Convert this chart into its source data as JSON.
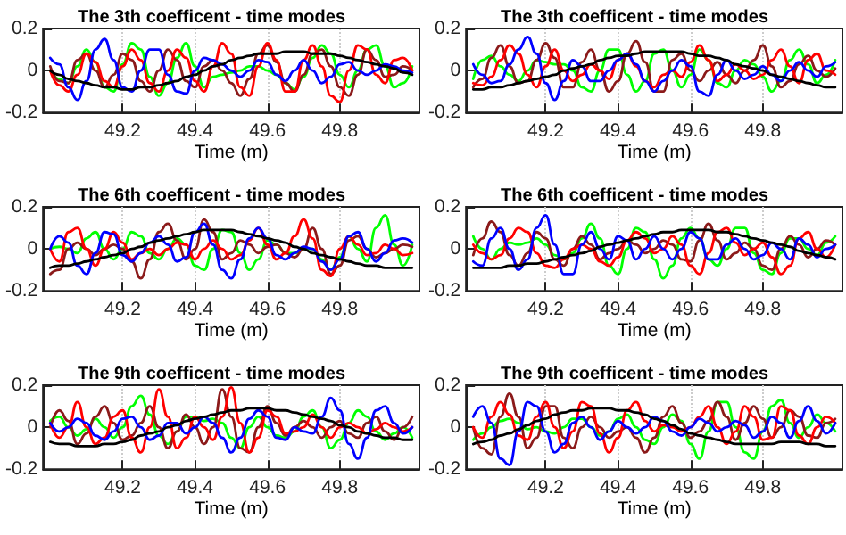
{
  "chart_data": [
    {
      "type": "line",
      "title": "The 3th coefficent - time modes",
      "xlabel": "Time (m)",
      "xlim": [
        48.98,
        50.02
      ],
      "ylim": [
        -0.2,
        0.2
      ],
      "xticks": [
        49.2,
        49.4,
        49.6,
        49.8
      ],
      "yticks": [
        -0.2,
        0,
        0.2
      ],
      "grid": "x",
      "marker": "none",
      "line_style": "solid",
      "x": [
        49,
        49.025,
        49.05,
        49.075,
        49.1,
        49.125,
        49.15,
        49.175,
        49.2,
        49.225,
        49.25,
        49.275,
        49.3,
        49.325,
        49.35,
        49.375,
        49.4,
        49.425,
        49.45,
        49.475,
        49.5,
        49.525,
        49.55,
        49.575,
        49.6,
        49.625,
        49.65,
        49.675,
        49.7,
        49.725,
        49.75,
        49.775,
        49.8,
        49.825,
        49.85,
        49.875,
        49.9,
        49.925,
        49.95,
        49.975,
        50
      ],
      "series": [
        {
          "color": "#00ff00",
          "values": [
            0,
            -0.04,
            -0.06,
            0.02,
            0.1,
            0.04,
            -0.08,
            -0.1,
            0.03,
            0.13,
            0.1,
            -0.03,
            -0.12,
            -0.06,
            0.06,
            0.13,
            0.02,
            -0.08,
            -0.03,
            -0.02,
            -0.01,
            0.0,
            0.02,
            0.02,
            0.0,
            -0.02,
            -0.06,
            -0.09,
            -0.03,
            0.06,
            0.12,
            0.08,
            -0.02,
            -0.08,
            0.0,
            0.1,
            0.12,
            0.02,
            -0.08,
            -0.06,
            0.02
          ]
        },
        {
          "color": "#8b1a1a",
          "values": [
            0.02,
            -0.05,
            -0.06,
            0.05,
            0.08,
            0.0,
            -0.08,
            -0.02,
            0.08,
            0.05,
            -0.05,
            -0.1,
            0.0,
            0.1,
            0.05,
            -0.05,
            -0.08,
            0.02,
            0.05,
            0.0,
            -0.06,
            -0.12,
            -0.04,
            0.08,
            0.12,
            0.04,
            -0.06,
            -0.1,
            -0.02,
            0.08,
            0.1,
            0.02,
            -0.08,
            -0.12,
            -0.02,
            0.1,
            0.05,
            -0.03,
            -0.02,
            0.02,
            0.0
          ]
        },
        {
          "color": "#ff0000",
          "values": [
            0,
            -0.07,
            -0.1,
            -0.02,
            0.08,
            0.04,
            -0.05,
            -0.08,
            0.02,
            0.1,
            0.05,
            -0.06,
            -0.1,
            0.0,
            0.1,
            0.06,
            -0.05,
            -0.1,
            0.02,
            0.13,
            0.08,
            -0.08,
            -0.12,
            0.02,
            0.13,
            0.05,
            -0.1,
            -0.1,
            0.05,
            0.12,
            0.02,
            -0.12,
            -0.15,
            0.0,
            0.12,
            0.1,
            -0.02,
            -0.06,
            0.05,
            0.06,
            0.0
          ]
        },
        {
          "color": "#0000ff",
          "values": [
            0.06,
            0.03,
            -0.08,
            -0.14,
            -0.05,
            0.1,
            0.15,
            0.05,
            -0.08,
            -0.1,
            0,
            0.1,
            0.1,
            -0.02,
            -0.1,
            -0.11,
            0,
            0.06,
            0.05,
            0.03,
            0.0,
            -0.03,
            0.0,
            0.05,
            0.04,
            -0.02,
            -0.05,
            0.0,
            0.05,
            0.0,
            -0.06,
            -0.03,
            0.03,
            0.04,
            0.0,
            -0.02,
            0.0,
            0.03,
            0.02,
            0.0,
            -0.01
          ]
        },
        {
          "color": "#000000",
          "values": [
            0,
            -0.02,
            -0.04,
            -0.05,
            -0.06,
            -0.07,
            -0.08,
            -0.08,
            -0.09,
            -0.09,
            -0.08,
            -0.08,
            -0.07,
            -0.06,
            -0.05,
            -0.03,
            -0.02,
            0,
            0.02,
            0.03,
            0.05,
            0.06,
            0.07,
            0.08,
            0.08,
            0.08,
            0.09,
            0.09,
            0.09,
            0.08,
            0.08,
            0.08,
            0.07,
            0.06,
            0.05,
            0.04,
            0.03,
            0.02,
            0.01,
            -0.01,
            -0.02
          ]
        }
      ]
    },
    {
      "type": "line",
      "title": "The 3th coefficent - time modes",
      "xlabel": "Time (m)",
      "xlim": [
        48.98,
        50.02
      ],
      "ylim": [
        -0.2,
        0.2
      ],
      "xticks": [
        49.2,
        49.4,
        49.6,
        49.8
      ],
      "yticks": [
        -0.2,
        0,
        0.2
      ],
      "grid": "x",
      "marker": "none",
      "line_style": "solid",
      "x": [
        49,
        49.025,
        49.05,
        49.075,
        49.1,
        49.125,
        49.15,
        49.175,
        49.2,
        49.225,
        49.25,
        49.275,
        49.3,
        49.325,
        49.35,
        49.375,
        49.4,
        49.425,
        49.45,
        49.475,
        49.5,
        49.525,
        49.55,
        49.575,
        49.6,
        49.625,
        49.65,
        49.675,
        49.7,
        49.725,
        49.75,
        49.775,
        49.8,
        49.825,
        49.85,
        49.875,
        49.9,
        49.925,
        49.95,
        49.975,
        50
      ],
      "series": [
        {
          "color": "#00ff00",
          "values": [
            -0.04,
            0.05,
            0.07,
            0.02,
            -0.02,
            -0.05,
            0.0,
            0.05,
            0.04,
            0.03,
            0.03,
            0.0,
            -0.08,
            -0.1,
            0.0,
            0.1,
            0.1,
            -0.02,
            -0.1,
            -0.05,
            0.08,
            0.1,
            0.0,
            -0.08,
            -0.02,
            0.1,
            0.05,
            -0.06,
            -0.08,
            0.0,
            0.05,
            0.03,
            -0.03,
            -0.1,
            -0.05,
            0.05,
            0.1,
            0.03,
            -0.06,
            -0.02,
            0.05
          ]
        },
        {
          "color": "#8b1a1a",
          "values": [
            -0.08,
            -0.04,
            0.06,
            0.12,
            0.02,
            -0.06,
            -0.05,
            0.05,
            0.13,
            0.06,
            -0.08,
            -0.08,
            0.04,
            0.1,
            0.0,
            -0.1,
            -0.05,
            0.08,
            0.14,
            0.04,
            -0.1,
            -0.1,
            0.05,
            0.08,
            0.0,
            -0.05,
            0.0,
            0.04,
            -0.02,
            -0.06,
            0.0,
            0.05,
            0.12,
            0.02,
            -0.08,
            -0.05,
            0.03,
            0.07,
            0.0,
            -0.03,
            0.01
          ]
        },
        {
          "color": "#ff0000",
          "values": [
            -0.06,
            -0.07,
            -0.03,
            0.05,
            0.12,
            0.08,
            -0.02,
            -0.08,
            0.02,
            0.1,
            0.0,
            -0.05,
            -0.02,
            0.03,
            0.0,
            -0.04,
            0.05,
            0.08,
            0.02,
            -0.05,
            -0.08,
            -0.02,
            0.0,
            -0.03,
            0.04,
            0.12,
            0.05,
            -0.05,
            -0.02,
            0.03,
            0.0,
            -0.04,
            -0.02,
            0.05,
            0.1,
            0.02,
            -0.06,
            0.05,
            0.08,
            0.0,
            -0.02
          ]
        },
        {
          "color": "#0000ff",
          "values": [
            0.03,
            -0.02,
            -0.06,
            -0.05,
            0.03,
            0.1,
            0.16,
            0.08,
            -0.06,
            -0.14,
            -0.05,
            0.05,
            0.02,
            -0.05,
            -0.05,
            0.0,
            0.05,
            0.08,
            0.03,
            -0.05,
            -0.1,
            -0.05,
            0.0,
            0.05,
            0.02,
            -0.1,
            -0.12,
            -0.02,
            0.05,
            0.0,
            -0.04,
            -0.02,
            0.02,
            -0.02,
            -0.05,
            0.0,
            0.04,
            0.0,
            -0.03,
            0.02,
            0.04
          ]
        },
        {
          "color": "#000000",
          "values": [
            -0.09,
            -0.09,
            -0.08,
            -0.08,
            -0.07,
            -0.06,
            -0.05,
            -0.04,
            -0.03,
            -0.02,
            0,
            0.01,
            0.02,
            0.03,
            0.05,
            0.06,
            0.07,
            0.07,
            0.08,
            0.09,
            0.09,
            0.09,
            0.09,
            0.09,
            0.08,
            0.07,
            0.07,
            0.06,
            0.05,
            0.03,
            0.02,
            0.01,
            0,
            -0.02,
            -0.03,
            -0.04,
            -0.05,
            -0.06,
            -0.07,
            -0.08,
            -0.08
          ]
        }
      ]
    },
    {
      "type": "line",
      "title": "The 6th coefficent - time modes",
      "xlabel": "Time (m)",
      "xlim": [
        48.98,
        50.02
      ],
      "ylim": [
        -0.2,
        0.2
      ],
      "xticks": [
        49.2,
        49.4,
        49.6,
        49.8
      ],
      "yticks": [
        -0.2,
        0,
        0.2
      ],
      "grid": "x",
      "marker": "none",
      "line_style": "solid",
      "x": [
        49,
        49.025,
        49.05,
        49.075,
        49.1,
        49.125,
        49.15,
        49.175,
        49.2,
        49.225,
        49.25,
        49.275,
        49.3,
        49.325,
        49.35,
        49.375,
        49.4,
        49.425,
        49.45,
        49.475,
        49.5,
        49.525,
        49.55,
        49.575,
        49.6,
        49.625,
        49.65,
        49.675,
        49.7,
        49.725,
        49.75,
        49.775,
        49.8,
        49.825,
        49.85,
        49.875,
        49.9,
        49.925,
        49.95,
        49.975,
        50
      ],
      "series": [
        {
          "color": "#00ff00",
          "values": [
            0.0,
            0.01,
            0.0,
            -0.02,
            0.05,
            0.08,
            0.0,
            -0.05,
            0.0,
            0.08,
            0.06,
            -0.02,
            -0.05,
            0.0,
            0.05,
            0.02,
            -0.08,
            -0.1,
            0.0,
            0.09,
            0.08,
            -0.02,
            -0.1,
            -0.05,
            0.04,
            0.02,
            -0.02,
            -0.02,
            0.0,
            0.0,
            -0.05,
            -0.1,
            -0.04,
            0.06,
            0.0,
            -0.06,
            0.1,
            0.16,
            0.02,
            -0.08,
            0.02
          ]
        },
        {
          "color": "#8b1a1a",
          "values": [
            -0.12,
            -0.1,
            0.0,
            0.03,
            0.0,
            -0.03,
            0.0,
            0.02,
            0.0,
            -0.06,
            -0.14,
            -0.05,
            0.08,
            0.12,
            0.04,
            -0.05,
            0.0,
            0.14,
            0.08,
            -0.05,
            -0.02,
            0.04,
            0.02,
            -0.02,
            0.01,
            0.02,
            -0.02,
            -0.04,
            0.0,
            0.1,
            0.0,
            -0.12,
            -0.08,
            0.04,
            0.06,
            0.0,
            -0.04,
            -0.02,
            0.0,
            0.02,
            0.01
          ]
        },
        {
          "color": "#ff0000",
          "values": [
            0.0,
            -0.06,
            0.08,
            0.1,
            0.0,
            -0.08,
            0.0,
            0.08,
            0.03,
            -0.05,
            -0.02,
            0.0,
            -0.03,
            0.0,
            0.03,
            0.02,
            -0.05,
            0.0,
            0.04,
            0.0,
            -0.05,
            -0.03,
            0.04,
            0.1,
            0.02,
            -0.05,
            -0.02,
            0.06,
            0.14,
            0.05,
            -0.1,
            -0.13,
            0.0,
            0.06,
            0.02,
            -0.03,
            -0.02,
            0.02,
            0.0,
            -0.03,
            -0.02
          ]
        },
        {
          "color": "#0000ff",
          "values": [
            0.0,
            0.06,
            0.03,
            -0.08,
            -0.12,
            -0.02,
            0.08,
            0.07,
            -0.03,
            -0.06,
            -0.02,
            0.03,
            0.06,
            0.02,
            -0.06,
            -0.04,
            0.08,
            0.12,
            0.02,
            -0.1,
            -0.14,
            -0.05,
            0.05,
            0.1,
            0.05,
            -0.03,
            -0.05,
            -0.02,
            0.01,
            0.0,
            -0.06,
            -0.1,
            -0.05,
            0.06,
            0.08,
            0.0,
            -0.06,
            -0.02,
            0.04,
            0.05,
            0.03
          ]
        },
        {
          "color": "#000000",
          "values": [
            -0.09,
            -0.08,
            -0.08,
            -0.07,
            -0.06,
            -0.05,
            -0.04,
            -0.03,
            -0.02,
            0,
            0.01,
            0.03,
            0.04,
            0.05,
            0.06,
            0.07,
            0.08,
            0.09,
            0.09,
            0.09,
            0.09,
            0.08,
            0.07,
            0.06,
            0.05,
            0.04,
            0.03,
            0.01,
            0,
            -0.02,
            -0.03,
            -0.04,
            -0.05,
            -0.06,
            -0.07,
            -0.08,
            -0.08,
            -0.09,
            -0.09,
            -0.09,
            -0.09
          ]
        }
      ]
    },
    {
      "type": "line",
      "title": "The 6th coefficent - time modes",
      "xlabel": "Time (m)",
      "xlim": [
        48.98,
        50.02
      ],
      "ylim": [
        -0.2,
        0.2
      ],
      "xticks": [
        49.2,
        49.4,
        49.6,
        49.8
      ],
      "yticks": [
        -0.2,
        0,
        0.2
      ],
      "grid": "x",
      "marker": "none",
      "line_style": "solid",
      "x": [
        49,
        49.025,
        49.05,
        49.075,
        49.1,
        49.125,
        49.15,
        49.175,
        49.2,
        49.225,
        49.25,
        49.275,
        49.3,
        49.325,
        49.35,
        49.375,
        49.4,
        49.425,
        49.45,
        49.475,
        49.5,
        49.525,
        49.55,
        49.575,
        49.6,
        49.625,
        49.65,
        49.675,
        49.7,
        49.725,
        49.75,
        49.775,
        49.8,
        49.825,
        49.85,
        49.875,
        49.9,
        49.925,
        49.95,
        49.975,
        50
      ],
      "series": [
        {
          "color": "#00ff00",
          "values": [
            0.06,
            0.0,
            -0.05,
            0.0,
            0.03,
            0.02,
            0.03,
            0.05,
            0.02,
            -0.03,
            -0.05,
            -0.02,
            0.05,
            0.12,
            0.05,
            -0.08,
            -0.12,
            0.0,
            0.1,
            0.08,
            -0.05,
            -0.14,
            -0.08,
            0.05,
            0.1,
            0.05,
            -0.05,
            -0.08,
            0.0,
            0.1,
            0.1,
            -0.02,
            -0.1,
            -0.12,
            -0.02,
            0.05,
            0.05,
            0.0,
            -0.03,
            0.03,
            0.06
          ]
        },
        {
          "color": "#8b1a1a",
          "values": [
            -0.03,
            0.05,
            0.13,
            0.08,
            -0.03,
            -0.08,
            -0.02,
            0.08,
            0.05,
            -0.05,
            -0.08,
            0.0,
            0.06,
            0.02,
            -0.05,
            -0.02,
            0.0,
            0.04,
            0.02,
            -0.02,
            0.0,
            0.04,
            0.02,
            -0.05,
            -0.06,
            0.04,
            0.12,
            0.04,
            -0.05,
            -0.02,
            0.03,
            0.0,
            -0.08,
            -0.1,
            0.0,
            0.06,
            0.02,
            -0.04,
            0.0,
            0.04,
            0.02
          ]
        },
        {
          "color": "#ff0000",
          "values": [
            0.02,
            -0.02,
            -0.05,
            -0.03,
            0.05,
            0.1,
            0.08,
            -0.02,
            -0.08,
            -0.09,
            -0.05,
            0.0,
            0.02,
            0.0,
            -0.06,
            -0.08,
            -0.04,
            0.04,
            0.08,
            0.05,
            -0.02,
            0.0,
            0.06,
            0.02,
            -0.08,
            -0.12,
            -0.02,
            0.08,
            0.1,
            0.03,
            -0.03,
            0.0,
            0.03,
            -0.04,
            -0.12,
            -0.08,
            0.05,
            0.08,
            0.0,
            -0.04,
            0.02
          ]
        },
        {
          "color": "#0000ff",
          "values": [
            -0.06,
            -0.08,
            0.05,
            0.1,
            0.0,
            -0.1,
            -0.05,
            0.1,
            0.16,
            0.02,
            -0.12,
            -0.12,
            0.02,
            0.08,
            0.0,
            -0.05,
            0.06,
            0.04,
            -0.05,
            0.0,
            0.06,
            0.0,
            -0.05,
            0.0,
            0.08,
            0.05,
            -0.05,
            -0.05,
            0.02,
            0.05,
            0.0,
            -0.05,
            -0.03,
            0.03,
            0.0,
            -0.05,
            0.05,
            0.02,
            -0.04,
            0.0,
            0.02
          ]
        },
        {
          "color": "#000000",
          "values": [
            -0.09,
            -0.09,
            -0.09,
            -0.09,
            -0.08,
            -0.08,
            -0.07,
            -0.07,
            -0.06,
            -0.05,
            -0.04,
            -0.03,
            -0.02,
            -0.01,
            0.01,
            0.02,
            0.03,
            0.04,
            0.05,
            0.06,
            0.07,
            0.08,
            0.08,
            0.09,
            0.09,
            0.09,
            0.09,
            0.08,
            0.08,
            0.07,
            0.06,
            0.05,
            0.04,
            0.03,
            0.02,
            0.01,
            -0.01,
            -0.02,
            -0.03,
            -0.04,
            -0.05
          ]
        }
      ]
    },
    {
      "type": "line",
      "title": "The 9th coefficent - time modes",
      "xlabel": "Time (m)",
      "xlim": [
        48.98,
        50.02
      ],
      "ylim": [
        -0.2,
        0.2
      ],
      "xticks": [
        49.2,
        49.4,
        49.6,
        49.8
      ],
      "yticks": [
        -0.2,
        0,
        0.2
      ],
      "grid": "x",
      "marker": "none",
      "line_style": "solid",
      "x": [
        49,
        49.025,
        49.05,
        49.075,
        49.1,
        49.125,
        49.15,
        49.175,
        49.2,
        49.225,
        49.25,
        49.275,
        49.3,
        49.325,
        49.35,
        49.375,
        49.4,
        49.425,
        49.45,
        49.475,
        49.5,
        49.525,
        49.55,
        49.575,
        49.6,
        49.625,
        49.65,
        49.675,
        49.7,
        49.725,
        49.75,
        49.775,
        49.8,
        49.825,
        49.85,
        49.875,
        49.9,
        49.925,
        49.95,
        49.975,
        50
      ],
      "series": [
        {
          "color": "#00ff00",
          "values": [
            0.03,
            0.05,
            0.0,
            -0.04,
            -0.01,
            0.04,
            0.0,
            -0.05,
            0.0,
            0.1,
            0.15,
            0.06,
            -0.04,
            -0.08,
            -0.02,
            0.05,
            0.05,
            0.03,
            0.04,
            0.02,
            -0.05,
            -0.1,
            0.0,
            0.05,
            0.0,
            -0.04,
            -0.05,
            -0.02,
            0.05,
            0.08,
            0.0,
            -0.1,
            -0.06,
            0.02,
            0.08,
            0.05,
            -0.02,
            -0.06,
            -0.03,
            0.0,
            -0.05
          ]
        },
        {
          "color": "#8b1a1a",
          "values": [
            0.0,
            0.08,
            0.03,
            -0.08,
            -0.03,
            0.05,
            0.1,
            0.02,
            -0.06,
            -0.04,
            0.02,
            0.1,
            0.0,
            -0.1,
            -0.02,
            0.06,
            0.0,
            -0.08,
            0.0,
            0.18,
            0.05,
            -0.1,
            -0.12,
            0.0,
            0.1,
            0.02,
            -0.04,
            0.0,
            0.03,
            0.0,
            -0.05,
            0.0,
            0.03,
            -0.03,
            -0.05,
            0.02,
            0.05,
            -0.02,
            -0.06,
            0.0,
            0.05
          ]
        },
        {
          "color": "#ff0000",
          "values": [
            0.02,
            -0.05,
            0.0,
            0.12,
            0.0,
            -0.08,
            -0.05,
            0.05,
            0.08,
            -0.05,
            -0.12,
            0.0,
            0.18,
            0.05,
            -0.1,
            -0.05,
            0.05,
            0.0,
            -0.06,
            0.05,
            0.19,
            0.02,
            -0.12,
            -0.05,
            0.08,
            0.05,
            -0.03,
            -0.02,
            0.0,
            0.06,
            0.0,
            -0.05,
            0.0,
            0.02,
            0.0,
            -0.03,
            -0.01,
            0.02,
            0.0,
            -0.02,
            0.0
          ]
        },
        {
          "color": "#0000ff",
          "values": [
            0.02,
            -0.02,
            0.0,
            0.04,
            0.02,
            -0.04,
            -0.06,
            -0.02,
            0.04,
            0.05,
            0.0,
            -0.06,
            -0.04,
            0.02,
            0.02,
            -0.03,
            0.0,
            0.05,
            0.02,
            -0.05,
            -0.12,
            -0.05,
            0.04,
            0.08,
            0.05,
            -0.05,
            -0.06,
            0.0,
            -0.02,
            -0.03,
            0.05,
            0.14,
            0.08,
            -0.08,
            -0.15,
            -0.05,
            0.08,
            0.1,
            0.02,
            -0.03,
            0.0
          ]
        },
        {
          "color": "#000000",
          "values": [
            -0.07,
            -0.08,
            -0.08,
            -0.09,
            -0.09,
            -0.09,
            -0.08,
            -0.08,
            -0.07,
            -0.06,
            -0.04,
            -0.03,
            -0.02,
            0,
            0.01,
            0.03,
            0.04,
            0.05,
            0.06,
            0.07,
            0.08,
            0.08,
            0.09,
            0.09,
            0.09,
            0.08,
            0.08,
            0.07,
            0.06,
            0.05,
            0.04,
            0.03,
            0.01,
            0,
            -0.02,
            -0.03,
            -0.04,
            -0.05,
            -0.05,
            -0.06,
            -0.06
          ]
        }
      ]
    },
    {
      "type": "line",
      "title": "The 9th coefficent - time modes",
      "xlabel": "Time (m)",
      "xlim": [
        48.98,
        50.02
      ],
      "ylim": [
        -0.2,
        0.2
      ],
      "xticks": [
        49.2,
        49.4,
        49.6,
        49.8
      ],
      "yticks": [
        -0.2,
        0,
        0.2
      ],
      "grid": "x",
      "marker": "none",
      "line_style": "solid",
      "x": [
        49,
        49.025,
        49.05,
        49.075,
        49.1,
        49.125,
        49.15,
        49.175,
        49.2,
        49.225,
        49.25,
        49.275,
        49.3,
        49.325,
        49.35,
        49.375,
        49.4,
        49.425,
        49.45,
        49.475,
        49.5,
        49.525,
        49.55,
        49.575,
        49.6,
        49.625,
        49.65,
        49.675,
        49.7,
        49.725,
        49.75,
        49.775,
        49.8,
        49.825,
        49.85,
        49.875,
        49.9,
        49.925,
        49.95,
        49.975,
        50
      ],
      "series": [
        {
          "color": "#00ff00",
          "values": [
            -0.06,
            -0.03,
            0.0,
            0.03,
            0.04,
            0.02,
            -0.01,
            0.0,
            -0.02,
            -0.03,
            0.0,
            0.04,
            0.04,
            0.0,
            -0.04,
            -0.02,
            0.04,
            0.06,
            0.0,
            -0.06,
            -0.08,
            0.0,
            0.06,
            0.03,
            -0.08,
            -0.15,
            -0.02,
            0.12,
            0.12,
            0.0,
            -0.12,
            -0.15,
            -0.02,
            0.1,
            0.13,
            0.02,
            -0.05,
            0.0,
            0.06,
            0.02,
            -0.02
          ]
        },
        {
          "color": "#8b1a1a",
          "values": [
            0.0,
            -0.1,
            -0.13,
            0.05,
            0.16,
            0.05,
            -0.1,
            -0.05,
            0.1,
            0.1,
            -0.05,
            -0.1,
            0.0,
            0.05,
            0.0,
            -0.05,
            -0.02,
            0.0,
            -0.05,
            -0.12,
            -0.05,
            0.05,
            0.1,
            0.02,
            -0.05,
            -0.02,
            0.03,
            0.12,
            0.05,
            -0.06,
            0.02,
            0.1,
            0.04,
            -0.05,
            0.0,
            0.08,
            0.05,
            -0.04,
            -0.05,
            0.02,
            0.04
          ]
        },
        {
          "color": "#ff0000",
          "values": [
            0.0,
            -0.05,
            0.05,
            0.12,
            0.06,
            -0.04,
            -0.06,
            0.05,
            0.12,
            0.0,
            -0.1,
            -0.02,
            0.12,
            0.1,
            -0.03,
            -0.12,
            -0.05,
            0.08,
            0.12,
            0.03,
            -0.02,
            0.01,
            0.0,
            -0.02,
            0.0,
            0.05,
            0.1,
            0.0,
            -0.08,
            -0.02,
            0.1,
            0.05,
            -0.06,
            -0.05,
            0.1,
            0.08,
            -0.04,
            -0.08,
            0.0,
            0.05,
            0.02
          ]
        },
        {
          "color": "#0000ff",
          "values": [
            0.05,
            0.1,
            0.02,
            -0.15,
            -0.18,
            -0.02,
            0.12,
            0.1,
            -0.02,
            -0.12,
            -0.08,
            0.02,
            0.05,
            0.0,
            -0.06,
            -0.02,
            0.03,
            0.0,
            -0.03,
            0.0,
            0.05,
            0.03,
            -0.02,
            -0.04,
            0.0,
            0.04,
            0.02,
            -0.02,
            0.0,
            0.03,
            0.01,
            -0.05,
            -0.02,
            0.05,
            0.02,
            -0.05,
            0.03,
            0.1,
            0.03,
            -0.03,
            0.02
          ]
        },
        {
          "color": "#000000",
          "values": [
            -0.08,
            -0.07,
            -0.06,
            -0.04,
            -0.03,
            -0.01,
            0.01,
            0.03,
            0.04,
            0.06,
            0.07,
            0.08,
            0.08,
            0.09,
            0.09,
            0.09,
            0.08,
            0.08,
            0.07,
            0.06,
            0.04,
            0.03,
            0.01,
            -0.01,
            -0.03,
            -0.04,
            -0.05,
            -0.06,
            -0.07,
            -0.08,
            -0.08,
            -0.08,
            -0.08,
            -0.08,
            -0.07,
            -0.07,
            -0.07,
            -0.08,
            -0.08,
            -0.09,
            -0.09
          ]
        }
      ]
    }
  ]
}
